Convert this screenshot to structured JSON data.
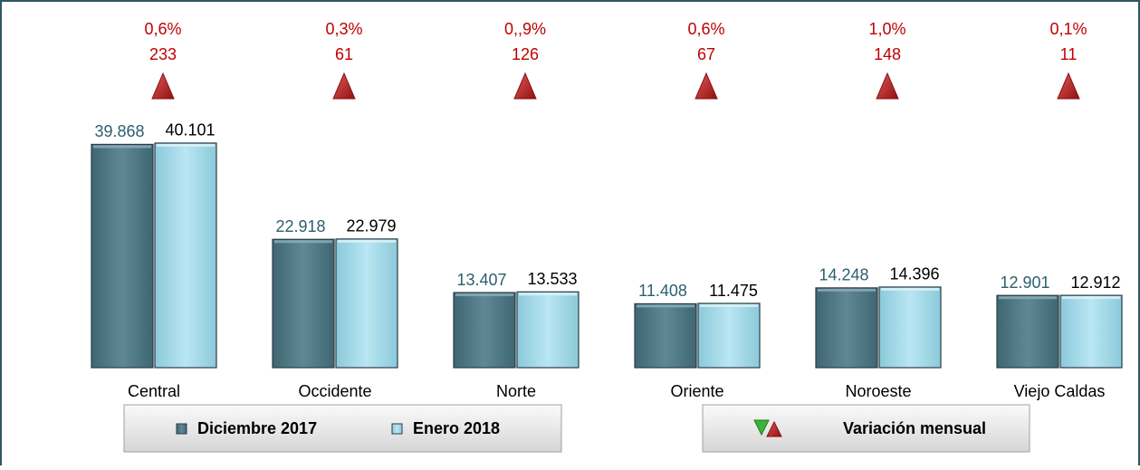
{
  "chart_data": {
    "type": "bar",
    "categories": [
      "Central",
      "Occidente",
      "Norte",
      "Oriente",
      "Noroeste",
      "Viejo Caldas"
    ],
    "series": [
      {
        "name": "Diciembre 2017",
        "color": "#587e8b",
        "values": [
          39868,
          22918,
          13407,
          11408,
          14248,
          12901
        ],
        "value_labels": [
          "39.868",
          "22.918",
          "13.407",
          "11.408",
          "14.248",
          "12.901"
        ]
      },
      {
        "name": "Enero 2018",
        "color": "#a7dbea",
        "values": [
          40101,
          22979,
          13533,
          11475,
          14396,
          12912
        ],
        "value_labels": [
          "40.101",
          "22.979",
          "13.533",
          "11.475",
          "14.396",
          "12.912"
        ]
      }
    ],
    "variation_percent": [
      "0,6%",
      "0,3%",
      "0,,9%",
      "0,6%",
      "1,0%",
      "0,1%"
    ],
    "variation_change": [
      233,
      61,
      126,
      67,
      148,
      11
    ],
    "variation_legend": "Variación mensual",
    "ylim": [
      0,
      65000
    ]
  }
}
